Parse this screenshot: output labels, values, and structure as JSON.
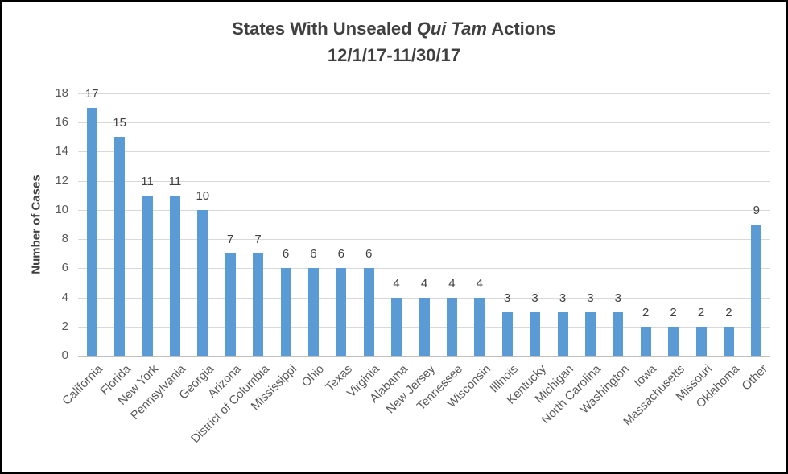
{
  "window": {
    "background": "#FFFFFF",
    "border_color": "#000000"
  },
  "chart_data": {
    "type": "bar",
    "title": "States With Unsealed Qui Tam Actions 12/1/17-11/30/17",
    "title_line1": {
      "prefix": "States With Unsealed ",
      "italic": "Qui Tam",
      "suffix": " Actions"
    },
    "title_line2": "12/1/17-11/30/17",
    "ylabel": "Number of Cases",
    "xlabel": "",
    "ylim": [
      0,
      18
    ],
    "ytick_step": 2,
    "yticks": [
      0,
      2,
      4,
      6,
      8,
      10,
      12,
      14,
      16,
      18
    ],
    "grid": true,
    "legend": "none",
    "data_labels": true,
    "categories": [
      "California",
      "Florida",
      "New York",
      "Pennsylvania",
      "Georgia",
      "Arizona",
      "District of Columbia",
      "Mississippi",
      "Ohio",
      "Texas",
      "Virginia",
      "Alabama",
      "New Jersey",
      "Tennessee",
      "Wisconsin",
      "Illinois",
      "Kentucky",
      "Michigan",
      "North Carolina",
      "Washington",
      "Iowa",
      "Massachusetts",
      "Missouri",
      "Oklahoma",
      "Other"
    ],
    "values": [
      17,
      15,
      11,
      11,
      10,
      7,
      7,
      6,
      6,
      6,
      6,
      4,
      4,
      4,
      4,
      3,
      3,
      3,
      3,
      3,
      2,
      2,
      2,
      2,
      9
    ],
    "colors": {
      "bar": "#5B9BD5",
      "gridline": "#D9D9D9",
      "axis_line": "#BFBFBF",
      "tick_text": "#595959",
      "title_text": "#404040",
      "data_label_text": "#404040"
    }
  }
}
